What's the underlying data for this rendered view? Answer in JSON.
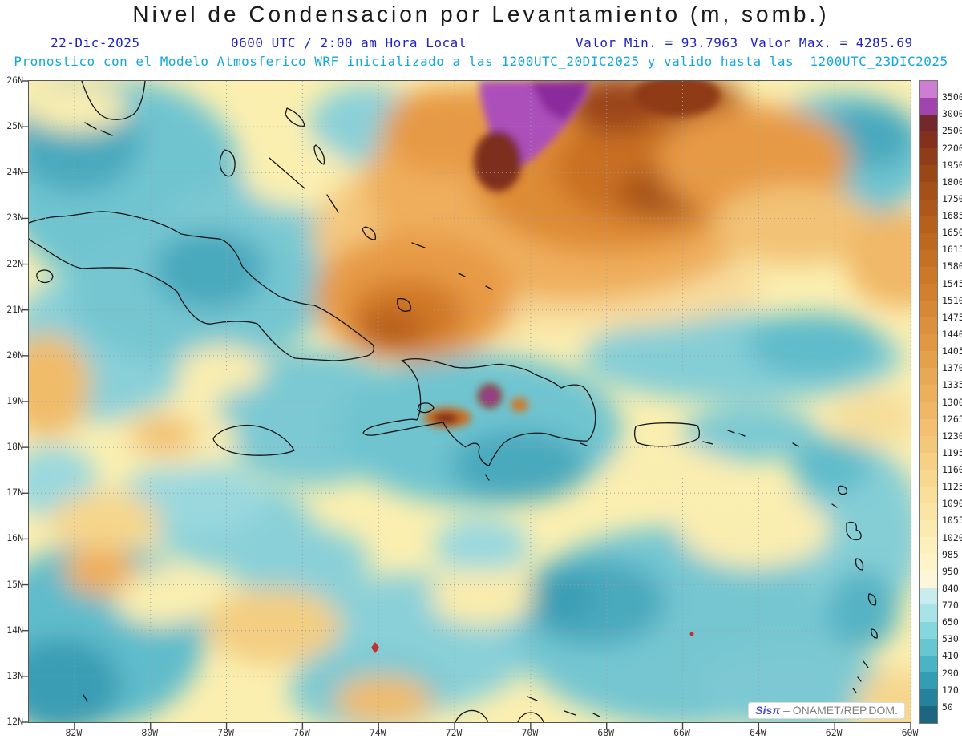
{
  "header": {
    "title": "Nivel de Condensacion por Levantamiento (m, somb.)",
    "date": "22-Dic-2025",
    "time": "0600 UTC / 2:00 am Hora Local",
    "min_label": "Valor Min. = 93.7963",
    "max_label": "Valor Max. = 4285.69",
    "forecast_line": "Pronostico con el Modelo Atmosferico WRF inicializado a las 1200UTC_20DIC2025 y valido hasta las  1200UTC_23DIC2025"
  },
  "map": {
    "lat_labels": [
      "26N",
      "25N",
      "24N",
      "23N",
      "22N",
      "21N",
      "20N",
      "19N",
      "18N",
      "17N",
      "16N",
      "15N",
      "14N",
      "13N",
      "12N"
    ],
    "lon_labels": [
      "82W",
      "80W",
      "78W",
      "76W",
      "74W",
      "72W",
      "70W",
      "68W",
      "66W",
      "64W",
      "62W",
      "60W"
    ]
  },
  "colorbar": {
    "labels": [
      "3500",
      "3000",
      "2500",
      "2200",
      "1950",
      "1800",
      "1750",
      "1685",
      "1650",
      "1615",
      "1580",
      "1545",
      "1510",
      "1475",
      "1440",
      "1405",
      "1370",
      "1335",
      "1300",
      "1265",
      "1230",
      "1195",
      "1160",
      "1125",
      "1090",
      "1055",
      "1020",
      "985",
      "950",
      "840",
      "770",
      "650",
      "530",
      "410",
      "290",
      "170",
      "50"
    ],
    "colors": [
      "#CD7ED3",
      "#A244AE",
      "#73282E",
      "#83301C",
      "#8F3D18",
      "#9A4716",
      "#A45018",
      "#AD581A",
      "#B6601C",
      "#BE681F",
      "#C57023",
      "#CC7828",
      "#D2802E",
      "#D78834",
      "#DC903B",
      "#E19843",
      "#E5A04B",
      "#E9A854",
      "#ECB05D",
      "#EFB866",
      "#F2C070",
      "#F4C87A",
      "#F6D084",
      "#F8D88F",
      "#F9DF9A",
      "#FAE5A5",
      "#FBEBB1",
      "#FCF0BD",
      "#FDF4C9",
      "#FCF7DB",
      "#C9EDEF",
      "#A7E3E7",
      "#86D6DD",
      "#66C7D2",
      "#4AB4C5",
      "#339DB4",
      "#26829C",
      "#1C6680"
    ]
  },
  "watermark": {
    "brand": "Sisπ",
    "suffix": " – ONAMET/REP.DOM."
  },
  "chart_data": {
    "type": "heatmap",
    "subtype": "filled_contour_weather_map",
    "title": "Nivel de Condensacion por Levantamiento (m, somb.)",
    "variable": "Lifting condensation level",
    "units": "m",
    "valid_date": "22-Dic-2025",
    "valid_time": "0600 UTC / 2:00 am Hora Local",
    "model": "WRF",
    "initialized": "1200UTC_20DIC2025",
    "valid_until": "1200UTC_23DIC2025",
    "value_min": 93.7963,
    "value_max": 4285.69,
    "extent": {
      "lat": [
        12,
        26
      ],
      "lon": [
        "82W",
        "60W"
      ]
    },
    "contour_levels": [
      50,
      170,
      290,
      410,
      530,
      650,
      770,
      840,
      950,
      985,
      1020,
      1055,
      1090,
      1125,
      1160,
      1195,
      1230,
      1265,
      1300,
      1335,
      1370,
      1405,
      1440,
      1475,
      1510,
      1545,
      1580,
      1615,
      1650,
      1685,
      1750,
      1800,
      1950,
      2200,
      2500,
      3000,
      3500
    ],
    "legend_position": "right",
    "grid": "dotted, 1-degree latitude / 2-degree longitude",
    "features": [
      "Maximum LCL above 3000 m (purple shading) centered near 25-26N, 69-71W over the open Atlantic",
      "Broad high-LCL ridge of 1300-2200 m (orange/brown shading) across the subtropical Atlantic roughly 21-26N, 61-76W",
      "Secondary orange maximum ~1500-1800 m northeast of eastern Cuba near 75-77W, 21-23N",
      "Low LCL of 170-840 m (cyan/teal shading) over Cuba, Jamaica, Hispaniola, the western Caribbean and most areas south of 17N",
      "Small dark-red/purple spots above 1750 m over Haiti and central Hispaniola near 19N, 70-72.5W"
    ]
  }
}
